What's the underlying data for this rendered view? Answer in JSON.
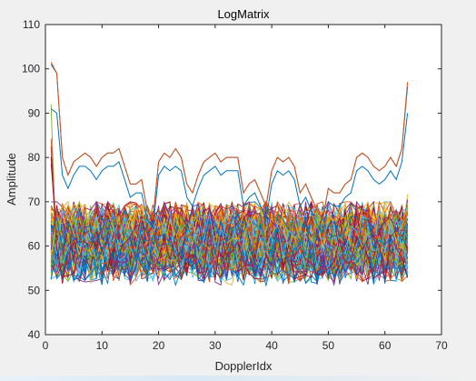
{
  "chart_data": {
    "type": "line",
    "title": "LogMatrix",
    "xlabel": "DopplerIdx",
    "ylabel": "Amplitude",
    "xlim": [
      0,
      70
    ],
    "ylim": [
      40,
      110
    ],
    "xticks": [
      "0",
      "10",
      "20",
      "30",
      "40",
      "50",
      "60",
      "70"
    ],
    "yticks": [
      "40",
      "50",
      "60",
      "70",
      "80",
      "90",
      "100",
      "110"
    ],
    "x_range": [
      1,
      64
    ],
    "grid": false,
    "legend": "none",
    "box": true,
    "noise_series": {
      "count": 120,
      "x_points": 64,
      "band_center": 61,
      "band_min": 48,
      "band_max": 70,
      "start_spike_max": 94,
      "end_spike_max": 72
    },
    "series": [
      {
        "color": "#0072bd",
        "values": [
          101,
          99,
          80,
          76,
          79,
          80,
          81,
          80,
          78,
          80,
          81,
          81,
          82,
          78,
          74,
          74,
          75,
          68,
          66,
          79,
          81,
          80,
          82,
          80,
          74,
          72,
          76,
          79,
          80,
          81,
          79,
          80,
          80,
          80,
          72,
          74,
          75,
          72,
          69,
          77,
          80,
          79,
          80,
          78,
          72,
          74,
          71,
          68,
          66,
          73,
          72,
          72,
          74,
          75,
          80,
          81,
          80,
          78,
          77,
          78,
          80,
          78,
          82,
          96
        ]
      },
      {
        "color": "#d95319",
        "values": [
          101.5,
          99,
          80,
          76,
          79,
          80,
          81,
          80,
          78,
          80,
          81,
          81,
          82,
          78,
          74,
          74,
          75,
          68,
          66,
          79,
          81,
          80,
          82,
          80,
          74,
          72,
          76,
          79,
          80,
          81,
          79,
          80,
          80,
          80,
          72,
          74,
          75,
          72,
          69,
          77,
          80,
          79,
          80,
          78,
          72,
          74,
          71,
          68,
          66,
          73,
          72,
          72,
          74,
          75,
          80,
          81,
          80,
          78,
          77,
          78,
          80,
          78,
          82,
          97
        ]
      },
      {
        "color": "#0072bd",
        "values": [
          91,
          90,
          76,
          73,
          76,
          78,
          78,
          77,
          75,
          77,
          78,
          78,
          79,
          75,
          71,
          72,
          72,
          66,
          64,
          76,
          78,
          77,
          78,
          77,
          71,
          69,
          73,
          76,
          77,
          78,
          76,
          77,
          77,
          77,
          69,
          71,
          72,
          69,
          66,
          74,
          77,
          76,
          77,
          75,
          69,
          71,
          68,
          65,
          63,
          70,
          69,
          69,
          71,
          72,
          77,
          78,
          77,
          75,
          74,
          75,
          77,
          75,
          79,
          90
        ]
      }
    ]
  }
}
